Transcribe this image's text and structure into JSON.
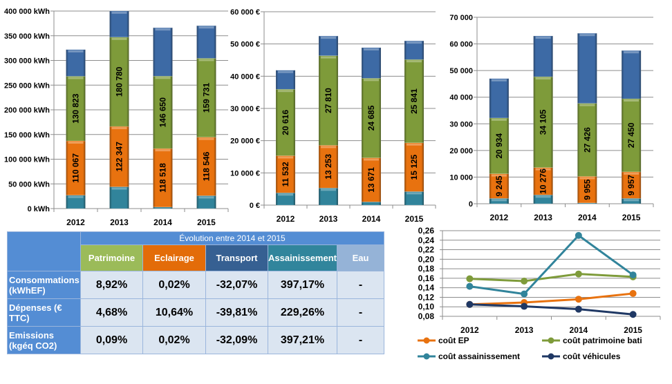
{
  "colors": {
    "teal": "#31849B",
    "orange": "#E8720F",
    "green": "#7E9B3A",
    "blue": "#3D6AA5",
    "table_header": "#548DD4",
    "table_cell": "#DBE5F1",
    "patrimoine": "#9BBB59",
    "eclairage": "#E36C09",
    "transport": "#366092",
    "assainissement": "#31859C",
    "eau": "#95B3D7",
    "line_ep": "#E8720F",
    "line_patrimoine": "#7E9B3A",
    "line_assainissement": "#31849B",
    "line_vehicules": "#1F3864"
  },
  "chart_data": [
    {
      "type": "bar",
      "stacked": true,
      "title": "",
      "categories": [
        "2012",
        "2013",
        "2014",
        "2015"
      ],
      "ylim": [
        0,
        400000
      ],
      "yticks": [
        0,
        50000,
        100000,
        150000,
        200000,
        250000,
        300000,
        350000,
        400000
      ],
      "ytick_labels": [
        "0 kWh",
        "50 000 kWh",
        "100 000 kWh",
        "150 000 kWh",
        "200 000 kWh",
        "250 000 kWh",
        "300 000 kWh",
        "350 000 kWh",
        "400 000 kWh"
      ],
      "grid": true,
      "series": [
        {
          "name": "assainissement",
          "color": "teal",
          "values": [
            27000,
            44000,
            3000,
            26000
          ],
          "labels": [
            "",
            "",
            "",
            ""
          ]
        },
        {
          "name": "eclairage",
          "color": "orange",
          "values": [
            110067,
            122347,
            118518,
            118546
          ],
          "labels": [
            "110 067",
            "122 347",
            "118 518",
            "118 546"
          ]
        },
        {
          "name": "patrimoine",
          "color": "green",
          "values": [
            130823,
            180780,
            146650,
            159731
          ],
          "labels": [
            "130 823",
            "180 780",
            "146 650",
            "159 731"
          ]
        },
        {
          "name": "transport",
          "color": "blue",
          "values": [
            54000,
            53000,
            98000,
            66000
          ],
          "labels": [
            "",
            "",
            "",
            ""
          ]
        }
      ]
    },
    {
      "type": "bar",
      "stacked": true,
      "title": "",
      "categories": [
        "2012",
        "2013",
        "2014",
        "2015"
      ],
      "ylim": [
        0,
        60000
      ],
      "yticks": [
        0,
        10000,
        20000,
        30000,
        40000,
        50000,
        60000
      ],
      "ytick_labels": [
        "0 €",
        "10 000 €",
        "20 000 €",
        "30 000 €",
        "40 000 €",
        "50 000 €",
        "60 000 €"
      ],
      "grid": true,
      "series": [
        {
          "name": "assainissement",
          "color": "teal",
          "values": [
            3800,
            5300,
            1000,
            4200
          ],
          "labels": [
            "",
            "",
            "",
            ""
          ]
        },
        {
          "name": "eclairage",
          "color": "orange",
          "values": [
            11532,
            13253,
            13671,
            15125
          ],
          "labels": [
            "11 532",
            "13 253",
            "13 671",
            "15 125"
          ]
        },
        {
          "name": "patrimoine",
          "color": "green",
          "values": [
            20616,
            27810,
            24685,
            25841
          ],
          "labels": [
            "20 616",
            "27 810",
            "24 685",
            "25 841"
          ]
        },
        {
          "name": "transport",
          "color": "blue",
          "values": [
            5900,
            6100,
            9500,
            5800
          ],
          "labels": [
            "",
            "",
            "",
            ""
          ]
        }
      ]
    },
    {
      "type": "bar",
      "stacked": true,
      "title": "",
      "categories": [
        "2012",
        "2013",
        "2014",
        "2015"
      ],
      "ylim": [
        0,
        70000
      ],
      "yticks": [
        0,
        10000,
        20000,
        30000,
        40000,
        50000,
        60000,
        70000
      ],
      "ytick_labels": [
        "0",
        "10 000",
        "20 000",
        "30 000",
        "40 000",
        "50 000",
        "60 000",
        "70 000"
      ],
      "grid": true,
      "series": [
        {
          "name": "assainissement",
          "color": "teal",
          "values": [
            2000,
            3300,
            300,
            2000
          ],
          "labels": [
            "",
            "",
            "",
            ""
          ]
        },
        {
          "name": "eclairage",
          "color": "orange",
          "values": [
            9245,
            10276,
            9955,
            9957
          ],
          "labels": [
            "9 245",
            "10 276",
            "9 955",
            "9 957"
          ]
        },
        {
          "name": "patrimoine",
          "color": "green",
          "values": [
            20934,
            34105,
            27426,
            27450
          ],
          "labels": [
            "20 934",
            "34 105",
            "27 426",
            "27 450"
          ]
        },
        {
          "name": "transport",
          "color": "blue",
          "values": [
            14800,
            15300,
            26300,
            18100
          ],
          "labels": [
            "",
            "",
            "",
            ""
          ]
        }
      ]
    },
    {
      "type": "line",
      "title": "",
      "x": [
        "2012",
        "2013",
        "2014",
        "2015"
      ],
      "ylim": [
        0.08,
        0.26
      ],
      "yticks": [
        0.08,
        0.1,
        0.12,
        0.14,
        0.16,
        0.18,
        0.2,
        0.22,
        0.24,
        0.26
      ],
      "ytick_labels": [
        "0,08",
        "0,10",
        "0,12",
        "0,14",
        "0,16",
        "0,18",
        "0,20",
        "0,22",
        "0,24",
        "0,26"
      ],
      "grid": true,
      "legend": "bottom",
      "series": [
        {
          "name": "coût EP",
          "color": "line_ep",
          "values": [
            0.105,
            0.109,
            0.116,
            0.128
          ]
        },
        {
          "name": "coût patrimoine bati",
          "color": "line_patrimoine",
          "values": [
            0.159,
            0.154,
            0.169,
            0.163
          ]
        },
        {
          "name": "coût assainissement",
          "color": "line_assainissement",
          "values": [
            0.143,
            0.127,
            0.25,
            0.167
          ]
        },
        {
          "name": "coût véhicules",
          "color": "line_vehicules",
          "values": [
            0.105,
            0.101,
            0.095,
            0.084
          ]
        }
      ]
    }
  ],
  "table": {
    "title": "Évolution entre 2014  et 2015",
    "columns": [
      "Patrimoine",
      "Eclairage",
      "Transport",
      "Assainissement",
      "Eau"
    ],
    "rows": [
      {
        "label": "Consommations (kWhEF)",
        "values": [
          "8,92%",
          "0,02%",
          "-32,07%",
          "397,17%",
          "-"
        ]
      },
      {
        "label": "Dépenses (€ TTC)",
        "values": [
          "4,68%",
          "10,64%",
          "-39,81%",
          "229,26%",
          "-"
        ]
      },
      {
        "label": "Emissions (kgéq CO2)",
        "values": [
          "0,09%",
          "0,02%",
          "-32,09%",
          "397,21%",
          "-"
        ]
      }
    ]
  }
}
